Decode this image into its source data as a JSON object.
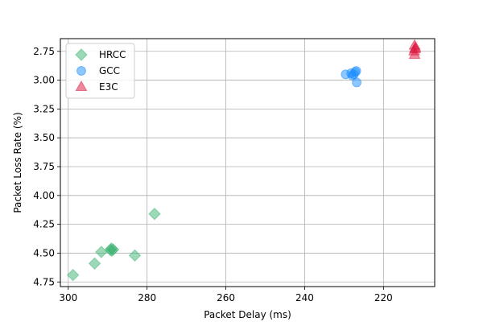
{
  "chart_data": {
    "type": "scatter",
    "xlabel": "Packet Delay (ms)",
    "ylabel": "Packet Loss Rate (%)",
    "xlim": [
      302,
      207
    ],
    "ylim": [
      4.79,
      2.64
    ],
    "x_inverted": true,
    "y_inverted": true,
    "xticks": [
      300,
      280,
      260,
      240,
      220
    ],
    "xtick_labels": [
      "300",
      "280",
      "260",
      "240",
      "220"
    ],
    "yticks": [
      2.75,
      3.0,
      3.25,
      3.5,
      3.75,
      4.0,
      4.25,
      4.5,
      4.75
    ],
    "ytick_labels": [
      "2.75",
      "3.00",
      "3.25",
      "3.50",
      "3.75",
      "4.00",
      "4.25",
      "4.50",
      "4.75"
    ],
    "grid": true,
    "legend_position": "top-left",
    "series": [
      {
        "name": "HRCC",
        "marker": "diamond",
        "color": "#3cb371",
        "points": [
          {
            "x": 298.8,
            "y": 4.69
          },
          {
            "x": 293.3,
            "y": 4.59
          },
          {
            "x": 291.6,
            "y": 4.49
          },
          {
            "x": 289.3,
            "y": 4.47
          },
          {
            "x": 289.0,
            "y": 4.48
          },
          {
            "x": 288.6,
            "y": 4.47
          },
          {
            "x": 289.0,
            "y": 4.46
          },
          {
            "x": 283.1,
            "y": 4.52
          },
          {
            "x": 278.1,
            "y": 4.16
          }
        ]
      },
      {
        "name": "GCC",
        "marker": "circle",
        "color": "#1e90ff",
        "points": [
          {
            "x": 229.6,
            "y": 2.95
          },
          {
            "x": 228.2,
            "y": 2.94
          },
          {
            "x": 227.9,
            "y": 2.96
          },
          {
            "x": 227.5,
            "y": 2.95
          },
          {
            "x": 227.2,
            "y": 2.93
          },
          {
            "x": 226.9,
            "y": 2.92
          },
          {
            "x": 226.8,
            "y": 3.02
          }
        ]
      },
      {
        "name": "E3C",
        "marker": "triangle",
        "color": "#dc143c",
        "points": [
          {
            "x": 212.1,
            "y": 2.7
          },
          {
            "x": 212.0,
            "y": 2.73
          },
          {
            "x": 212.2,
            "y": 2.75
          },
          {
            "x": 211.9,
            "y": 2.72
          },
          {
            "x": 212.1,
            "y": 2.78
          }
        ]
      }
    ]
  }
}
